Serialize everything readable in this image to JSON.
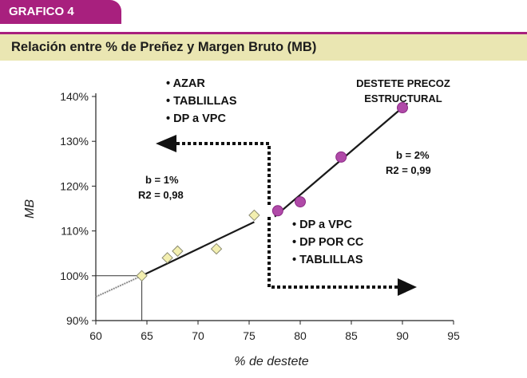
{
  "header": {
    "tab_label": "GRAFICO 4",
    "title": "Relación entre % de Preñez y Margen Bruto (MB)"
  },
  "colors": {
    "tab": "#a8207e",
    "title_bar": "#eae6b2",
    "diamond_fill": "#f3efb0",
    "dot_fill": "#b04aa8"
  },
  "annotations": {
    "left_list": [
      "• AZAR",
      "• TABLILLAS",
      "• DP a VPC"
    ],
    "right_list": [
      "• DP a VPC",
      "• DP POR CC",
      "• TABLILLAS"
    ],
    "top_right_line1": "DESTETE PRECOZ",
    "top_right_line2": "ESTRUCTURAL",
    "fit_left_b": "b = 1%",
    "fit_left_r2": "R2 = 0,98",
    "fit_right_b": "b = 2%",
    "fit_right_r2": "R2 = 0,99"
  },
  "chart_data": {
    "type": "scatter",
    "title": "Relación entre % de Preñez y Margen Bruto (MB)",
    "xlabel": "% de destete",
    "ylabel": "MB",
    "xlim": [
      60,
      95
    ],
    "ylim": [
      90,
      140
    ],
    "x_ticks": [
      60,
      65,
      70,
      75,
      80,
      85,
      90,
      95
    ],
    "x_tick_labels": [
      "60",
      "65",
      "70",
      "75",
      "80",
      "85",
      "90",
      "95"
    ],
    "y_ticks": [
      90,
      100,
      110,
      120,
      130,
      140
    ],
    "y_tick_labels": [
      "90%",
      "100%",
      "110%",
      "120%",
      "130%",
      "140%"
    ],
    "grid": false,
    "series": [
      {
        "marker": "diamond",
        "points": [
          [
            64.5,
            100
          ],
          [
            67,
            104
          ],
          [
            68,
            105.5
          ],
          [
            71.8,
            106
          ],
          [
            75.5,
            113.5
          ]
        ],
        "trend": [
          [
            64.5,
            100
          ],
          [
            75.5,
            112
          ]
        ],
        "trend_extension": [
          [
            60,
            95.3
          ],
          [
            64.5,
            100
          ]
        ]
      },
      {
        "marker": "circle",
        "points": [
          [
            77.8,
            114.5
          ],
          [
            80,
            116.5
          ],
          [
            84,
            126.5
          ],
          [
            90,
            137.5
          ]
        ],
        "trend": [
          [
            77.5,
            113.2
          ],
          [
            90.5,
            138.5
          ]
        ]
      }
    ],
    "reference_lines": {
      "x": 64.5,
      "y": 100
    }
  }
}
